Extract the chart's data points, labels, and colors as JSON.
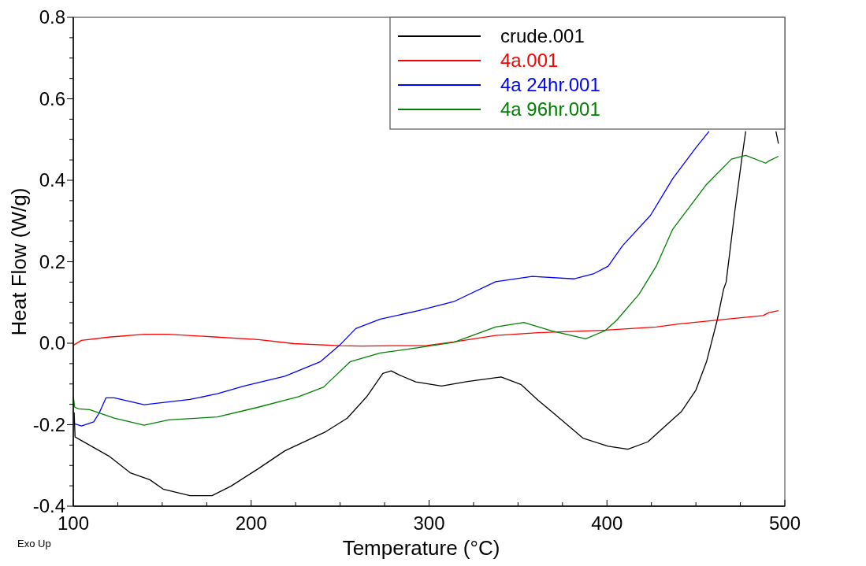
{
  "chart_data": {
    "type": "line",
    "xlabel": "Temperature (°C)",
    "ylabel": "Heat Flow (W/g)",
    "xlim": [
      100,
      500
    ],
    "ylim": [
      -0.4,
      0.8
    ],
    "xticks": [
      100,
      {
        "value": 125,
        "label": null
      },
      {
        "value": 150,
        "label": null
      },
      {
        "value": 175,
        "label": null
      },
      200,
      {
        "value": 225,
        "label": null
      },
      {
        "value": 250,
        "label": null
      },
      {
        "value": 275,
        "label": null
      },
      300,
      {
        "value": 325,
        "label": null
      },
      {
        "value": 350,
        "label": null
      },
      {
        "value": 375,
        "label": null
      },
      400,
      {
        "value": 425,
        "label": null
      },
      {
        "value": 450,
        "label": null
      },
      {
        "value": 475,
        "label": null
      },
      500
    ],
    "yticks": [
      {
        "value": -0.4,
        "label": "-0.4"
      },
      {
        "value": -0.35,
        "label": null
      },
      {
        "value": -0.3,
        "label": null
      },
      {
        "value": -0.25,
        "label": null
      },
      {
        "value": -0.2,
        "label": "-0.2"
      },
      {
        "value": -0.15,
        "label": null
      },
      {
        "value": -0.1,
        "label": null
      },
      {
        "value": -0.05,
        "label": null
      },
      {
        "value": 0,
        "label": "0.0"
      },
      {
        "value": 0.05,
        "label": null
      },
      {
        "value": 0.1,
        "label": null
      },
      {
        "value": 0.15,
        "label": null
      },
      {
        "value": 0.2,
        "label": "0.2"
      },
      {
        "value": 0.25,
        "label": null
      },
      {
        "value": 0.3,
        "label": null
      },
      {
        "value": 0.35,
        "label": null
      },
      {
        "value": 0.4,
        "label": "0.4"
      },
      {
        "value": 0.45,
        "label": null
      },
      {
        "value": 0.5,
        "label": null
      },
      {
        "value": 0.55,
        "label": null
      },
      {
        "value": 0.6,
        "label": "0.6"
      },
      {
        "value": 0.65,
        "label": null
      },
      {
        "value": 0.7,
        "label": null
      },
      {
        "value": 0.75,
        "label": null
      },
      {
        "value": 0.8,
        "label": "0.8"
      }
    ],
    "grid": false,
    "legend": "top right",
    "marker": "none",
    "line_style": "solid",
    "annotations": [
      "Exo Up"
    ],
    "series": [
      {
        "name": "crude.001",
        "color": "#000000",
        "x": [
          100.5,
          101,
          103,
          120,
          132,
          143,
          150.5,
          165.6,
          178,
          188.6,
          204,
          219,
          242,
          254,
          265,
          274,
          278.7,
          283.3,
          292.5,
          307,
          321.7,
          340.5,
          351.6,
          361.3,
          370.6,
          386.5,
          400.7,
          411.8,
          423,
          432.4,
          442,
          450,
          456,
          462,
          465.6,
          467,
          472,
          476,
          478,
          486,
          495,
          496.4
        ],
        "values": [
          -0.17,
          -0.23,
          -0.235,
          -0.277,
          -0.318,
          -0.335,
          -0.358,
          -0.374,
          -0.374,
          -0.351,
          -0.308,
          -0.264,
          -0.217,
          -0.184,
          -0.131,
          -0.074,
          -0.068,
          -0.078,
          -0.095,
          -0.105,
          -0.094,
          -0.083,
          -0.101,
          -0.14,
          -0.174,
          -0.233,
          -0.253,
          -0.26,
          -0.242,
          -0.205,
          -0.167,
          -0.115,
          -0.045,
          0.057,
          0.133,
          0.15,
          0.328,
          0.459,
          0.52,
          null,
          0.52,
          0.49
        ]
      },
      {
        "name": "4a.001",
        "color": "#ff0000",
        "x": [
          100,
          104.6,
          120,
          140,
          153.6,
          181,
          204,
          224,
          249.7,
          262,
          280,
          298,
          313.8,
          337.4,
          361.3,
          399,
          427.7,
          440,
          472,
          487.8,
          491,
          496.4
        ],
        "values": [
          -0.005,
          0.007,
          0.015,
          0.022,
          0.022,
          0.015,
          0.009,
          -0.001,
          -0.006,
          -0.007,
          -0.006,
          -0.006,
          0.003,
          0.019,
          0.026,
          0.032,
          0.04,
          0.047,
          0.061,
          0.068,
          0.075,
          0.08
        ]
      },
      {
        "name": "4a 24hr.001",
        "color": "#0000ff",
        "x": [
          100.8,
          104.6,
          111.5,
          114.6,
          118.4,
          123,
          139.8,
          165.6,
          181,
          196,
          219,
          239,
          249.7,
          258.8,
          272.6,
          294,
          313.8,
          337.4,
          358,
          381.7,
          392.7,
          400.7,
          408.7,
          424.5,
          437,
          450,
          457.4
        ],
        "values": [
          -0.198,
          -0.203,
          -0.193,
          -0.171,
          -0.134,
          -0.134,
          -0.151,
          -0.138,
          -0.124,
          -0.105,
          -0.081,
          -0.045,
          -0.005,
          0.036,
          0.059,
          0.08,
          0.102,
          0.151,
          0.164,
          0.158,
          0.171,
          0.189,
          0.239,
          0.314,
          0.404,
          0.48,
          0.52
        ]
      },
      {
        "name": "4a 96hr.001",
        "color": "#008000",
        "x": [
          100,
          100.8,
          103,
          109.2,
          123,
          139.8,
          153.6,
          181,
          204,
          226.7,
          240.6,
          255.8,
          272.6,
          294,
          313.8,
          337.4,
          353.3,
          369,
          388,
          399,
          405.6,
          418,
          427.7,
          437,
          456,
          470,
          478,
          489.3,
          490.5,
          496.4
        ],
        "values": [
          -0.131,
          -0.157,
          -0.161,
          -0.163,
          -0.184,
          -0.201,
          -0.188,
          -0.181,
          -0.157,
          -0.131,
          -0.108,
          -0.045,
          -0.024,
          -0.011,
          0.002,
          0.04,
          0.051,
          0.03,
          0.011,
          0.031,
          0.057,
          0.12,
          0.189,
          0.28,
          0.39,
          0.452,
          0.461,
          0.442,
          0.446,
          0.459
        ]
      }
    ]
  }
}
